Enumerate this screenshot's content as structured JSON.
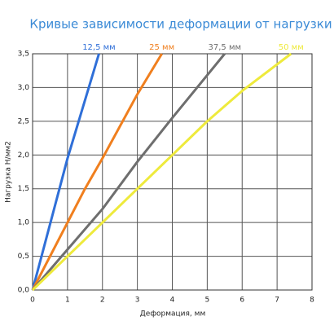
{
  "chart_data": {
    "type": "line",
    "title": "Кривые зависимости деформации от нагрузки",
    "xlabel": "Деформация, мм",
    "ylabel": "Нагрузка Н/мм2",
    "xlim": [
      0,
      8
    ],
    "ylim": [
      0,
      3.5
    ],
    "xticks": [
      0,
      1,
      2,
      3,
      4,
      5,
      6,
      7,
      8
    ],
    "yticks": [
      {
        "value": 0,
        "label": "0,0"
      },
      {
        "value": 0.5,
        "label": "0,5"
      },
      {
        "value": 1,
        "label": "1,0"
      },
      {
        "value": 1.5,
        "label": "1,5"
      },
      {
        "value": 2,
        "label": "2,0"
      },
      {
        "value": 2.5,
        "label": "2,5"
      },
      {
        "value": 3,
        "label": "3,0"
      },
      {
        "value": 3.5,
        "label": "3,5"
      }
    ],
    "grid": true,
    "series": [
      {
        "name": "12,5 мм",
        "color": "#2f6fd8",
        "x": [
          0,
          1,
          1.9
        ],
        "values": [
          0,
          1.95,
          3.5
        ]
      },
      {
        "name": "25 мм",
        "color": "#f07f1e",
        "x": [
          0,
          1,
          1.5,
          2,
          3,
          3.7
        ],
        "values": [
          0,
          1,
          1.5,
          1.95,
          2.9,
          3.5
        ]
      },
      {
        "name": "37,5 мм",
        "color": "#6e6e6e",
        "x": [
          0,
          1,
          2,
          3,
          4,
          5.5
        ],
        "values": [
          0,
          0.6,
          1.2,
          1.9,
          2.55,
          3.5
        ]
      },
      {
        "name": "50 мм",
        "color": "#eeea3c",
        "x": [
          0,
          1,
          2,
          3,
          4,
          5,
          6,
          7.4
        ],
        "values": [
          0,
          0.5,
          1,
          1.5,
          2,
          2.5,
          2.95,
          3.5
        ]
      }
    ]
  }
}
